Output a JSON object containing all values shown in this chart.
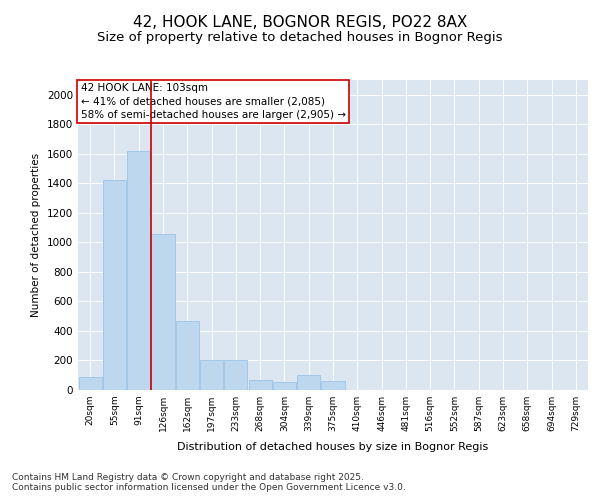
{
  "title1": "42, HOOK LANE, BOGNOR REGIS, PO22 8AX",
  "title2": "Size of property relative to detached houses in Bognor Regis",
  "xlabel": "Distribution of detached houses by size in Bognor Regis",
  "ylabel": "Number of detached properties",
  "categories": [
    "20sqm",
    "55sqm",
    "91sqm",
    "126sqm",
    "162sqm",
    "197sqm",
    "233sqm",
    "268sqm",
    "304sqm",
    "339sqm",
    "375sqm",
    "410sqm",
    "446sqm",
    "481sqm",
    "516sqm",
    "552sqm",
    "587sqm",
    "623sqm",
    "658sqm",
    "694sqm",
    "729sqm"
  ],
  "values": [
    90,
    1420,
    1620,
    1060,
    470,
    200,
    200,
    65,
    55,
    100,
    60,
    0,
    0,
    0,
    0,
    0,
    0,
    0,
    0,
    0,
    0
  ],
  "bar_color": "#bdd7ee",
  "bar_edge_color": "#9dc3e6",
  "vline_x": 2.5,
  "vline_color": "#cc0000",
  "annotation_text": "42 HOOK LANE: 103sqm\n← 41% of detached houses are smaller (2,085)\n58% of semi-detached houses are larger (2,905) →",
  "annotation_box_color": "#cc0000",
  "ylim": [
    0,
    2100
  ],
  "yticks": [
    0,
    200,
    400,
    600,
    800,
    1000,
    1200,
    1400,
    1600,
    1800,
    2000
  ],
  "plot_bg_color": "#dce6f1",
  "footer_line1": "Contains HM Land Registry data © Crown copyright and database right 2025.",
  "footer_line2": "Contains public sector information licensed under the Open Government Licence v3.0.",
  "title1_fontsize": 11,
  "title2_fontsize": 9.5,
  "annotation_fontsize": 7.5,
  "footer_fontsize": 6.5,
  "ylabel_fontsize": 7.5,
  "xlabel_fontsize": 8
}
